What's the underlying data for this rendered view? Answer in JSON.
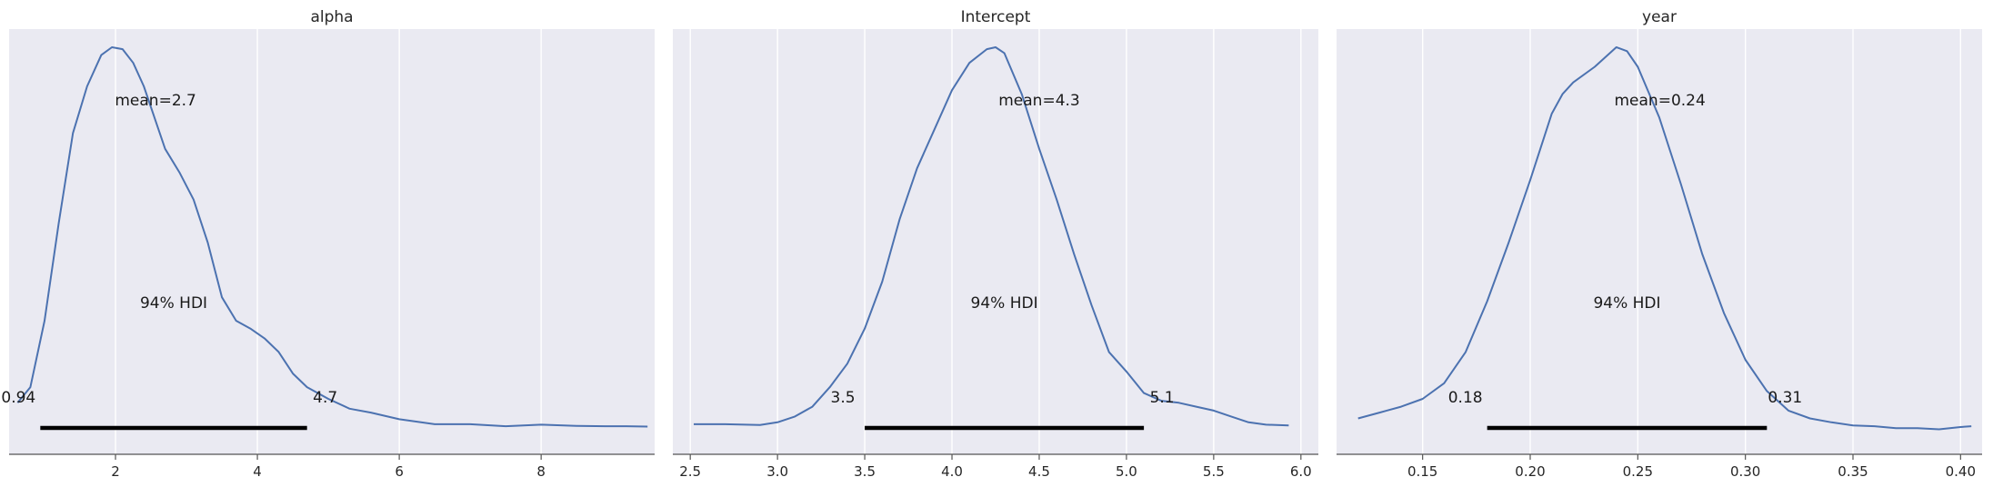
{
  "figure": {
    "background": "#ffffff",
    "axes_facecolor": "#eaeaf2",
    "grid_color": "#ffffff",
    "line_color": "#4c72b0",
    "hdi_color": "#000000"
  },
  "chart_data": [
    {
      "type": "line",
      "title": "alpha",
      "xlim": [
        0.5,
        9.6
      ],
      "xticks": [
        2,
        4,
        6,
        8
      ],
      "xtick_labels": [
        "2",
        "4",
        "6",
        "8"
      ],
      "mean_label": "mean=2.7",
      "hdi_label": "94% HDI",
      "hdi": [
        0.94,
        4.7
      ],
      "hdi_labels": [
        "0.94",
        "4.7"
      ],
      "series": [
        {
          "x": [
            0.62,
            0.8,
            1.0,
            1.2,
            1.4,
            1.6,
            1.8,
            1.95,
            2.1,
            2.25,
            2.4,
            2.55,
            2.7,
            2.9,
            3.1,
            3.3,
            3.5,
            3.7,
            3.9,
            4.1,
            4.3,
            4.5,
            4.7,
            5.0,
            5.3,
            5.6,
            6.0,
            6.5,
            7.0,
            7.5,
            8.0,
            8.5,
            8.9,
            9.2,
            9.5
          ],
          "y": [
            0.09,
            0.13,
            0.3,
            0.55,
            0.78,
            0.9,
            0.98,
            1.0,
            0.995,
            0.96,
            0.9,
            0.82,
            0.74,
            0.68,
            0.61,
            0.5,
            0.36,
            0.3,
            0.28,
            0.255,
            0.22,
            0.165,
            0.13,
            0.1,
            0.075,
            0.065,
            0.048,
            0.035,
            0.035,
            0.03,
            0.034,
            0.031,
            0.03,
            0.03,
            0.029
          ]
        }
      ]
    },
    {
      "type": "line",
      "title": "Intercept",
      "xlim": [
        2.4,
        6.1
      ],
      "xticks": [
        2.5,
        3.0,
        3.5,
        4.0,
        4.5,
        5.0,
        5.5,
        6.0
      ],
      "xtick_labels": [
        "2.5",
        "3.0",
        "3.5",
        "4.0",
        "4.5",
        "5.0",
        "5.5",
        "6.0"
      ],
      "mean_label": "mean=4.3",
      "hdi_label": "94% HDI",
      "hdi": [
        3.5,
        5.1
      ],
      "hdi_labels": [
        "3.5",
        "5.1"
      ],
      "series": [
        {
          "x": [
            2.52,
            2.7,
            2.9,
            3.0,
            3.1,
            3.2,
            3.3,
            3.4,
            3.5,
            3.6,
            3.7,
            3.8,
            3.9,
            4.0,
            4.1,
            4.2,
            4.25,
            4.3,
            4.4,
            4.5,
            4.6,
            4.7,
            4.8,
            4.9,
            5.0,
            5.1,
            5.2,
            5.3,
            5.4,
            5.5,
            5.6,
            5.7,
            5.8,
            5.93
          ],
          "y": [
            0.035,
            0.035,
            0.033,
            0.04,
            0.055,
            0.08,
            0.13,
            0.19,
            0.28,
            0.4,
            0.56,
            0.69,
            0.79,
            0.89,
            0.96,
            0.995,
            1.0,
            0.985,
            0.88,
            0.74,
            0.61,
            0.47,
            0.34,
            0.22,
            0.17,
            0.115,
            0.095,
            0.09,
            0.08,
            0.07,
            0.055,
            0.04,
            0.034,
            0.032
          ]
        }
      ]
    },
    {
      "type": "line",
      "title": "year",
      "xlim": [
        0.11,
        0.41
      ],
      "xticks": [
        0.15,
        0.2,
        0.25,
        0.3,
        0.35,
        0.4
      ],
      "xtick_labels": [
        "0.15",
        "0.20",
        "0.25",
        "0.30",
        "0.35",
        "0.40"
      ],
      "mean_label": "mean=0.24",
      "hdi_label": "94% HDI",
      "hdi": [
        0.18,
        0.31
      ],
      "hdi_labels": [
        "0.18",
        "0.31"
      ],
      "series": [
        {
          "x": [
            0.12,
            0.13,
            0.14,
            0.15,
            0.16,
            0.17,
            0.18,
            0.19,
            0.2,
            0.21,
            0.215,
            0.22,
            0.23,
            0.24,
            0.245,
            0.25,
            0.26,
            0.27,
            0.28,
            0.29,
            0.3,
            0.31,
            0.32,
            0.33,
            0.34,
            0.35,
            0.36,
            0.37,
            0.38,
            0.39,
            0.4,
            0.405
          ],
          "y": [
            0.05,
            0.065,
            0.08,
            0.1,
            0.14,
            0.22,
            0.35,
            0.5,
            0.66,
            0.83,
            0.88,
            0.91,
            0.95,
            1.0,
            0.99,
            0.95,
            0.82,
            0.65,
            0.47,
            0.32,
            0.2,
            0.12,
            0.07,
            0.05,
            0.04,
            0.032,
            0.03,
            0.025,
            0.025,
            0.022,
            0.028,
            0.03
          ]
        }
      ]
    }
  ]
}
